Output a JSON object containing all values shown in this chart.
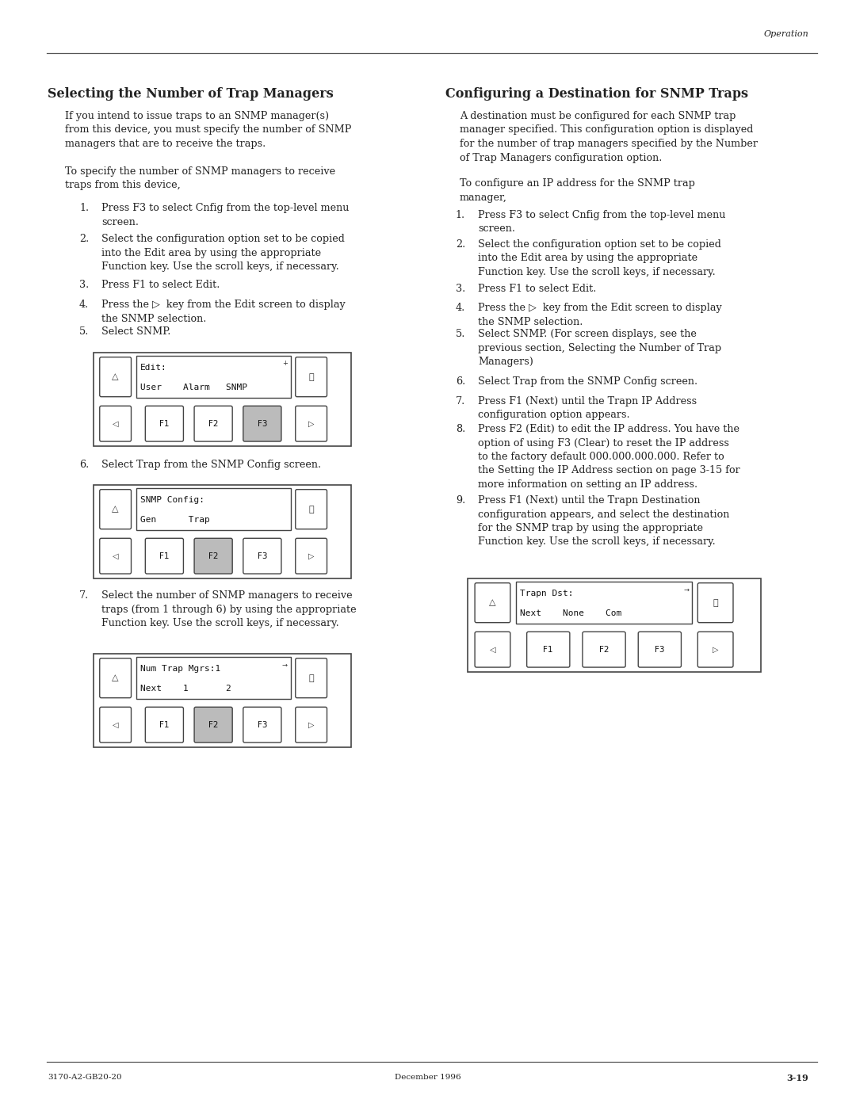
{
  "page_width": 10.8,
  "page_height": 13.97,
  "bg_color": "#ffffff",
  "header_text": "Operation",
  "footer_left": "3170-A2-GB20-20",
  "footer_center": "December 1996",
  "footer_right": "3-19",
  "left_title": "Selecting the Number of Trap Managers",
  "right_title": "Configuring a Destination for SNMP Traps",
  "screens": [
    {
      "id": "edit_screen",
      "col": "left",
      "line1": "Edit:",
      "line2": "User    Alarm   SNMP",
      "arrow": "+",
      "f_gray": 2
    },
    {
      "id": "snmp_config",
      "col": "left",
      "line1": "SNMP Config:",
      "line2": "Gen      Trap",
      "arrow": null,
      "f_gray": 1
    },
    {
      "id": "num_trap",
      "col": "left",
      "line1": "Num Trap Mgrs:1",
      "line2": "Next    1       2",
      "arrow": "→",
      "f_gray": 1
    },
    {
      "id": "trapn_dst",
      "col": "right",
      "line1": "Trapn Dst:",
      "line2": "Next    None    Com",
      "arrow": "→",
      "f_gray": -1
    }
  ]
}
